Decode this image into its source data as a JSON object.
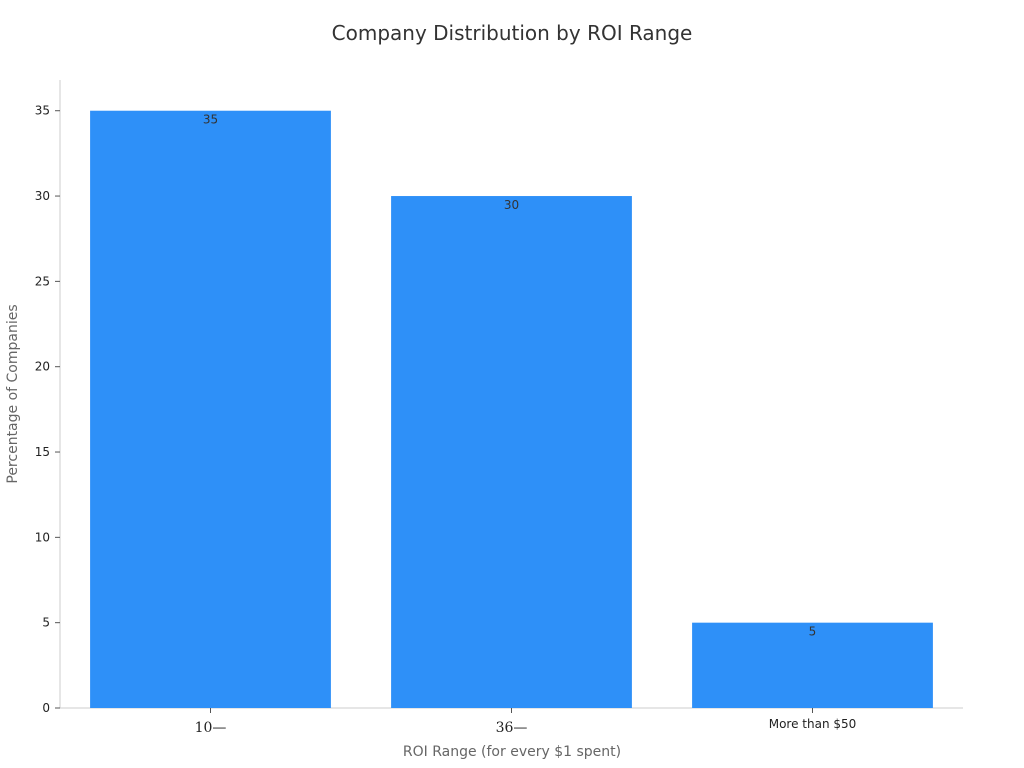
{
  "chart_data": {
    "type": "bar",
    "title": "Company Distribution by ROI Range",
    "xlabel": "ROI Range (for every $1 spent)",
    "ylabel": "Percentage of Companies",
    "categories": [
      "10—",
      "36—",
      "More than $50"
    ],
    "values": [
      35,
      30,
      5
    ],
    "ylim": [
      0,
      36.8
    ],
    "yticks": [
      0,
      5,
      10,
      15,
      20,
      25,
      30,
      35
    ],
    "bar_color": "#2e90f8",
    "grid": false,
    "legend": "none"
  }
}
